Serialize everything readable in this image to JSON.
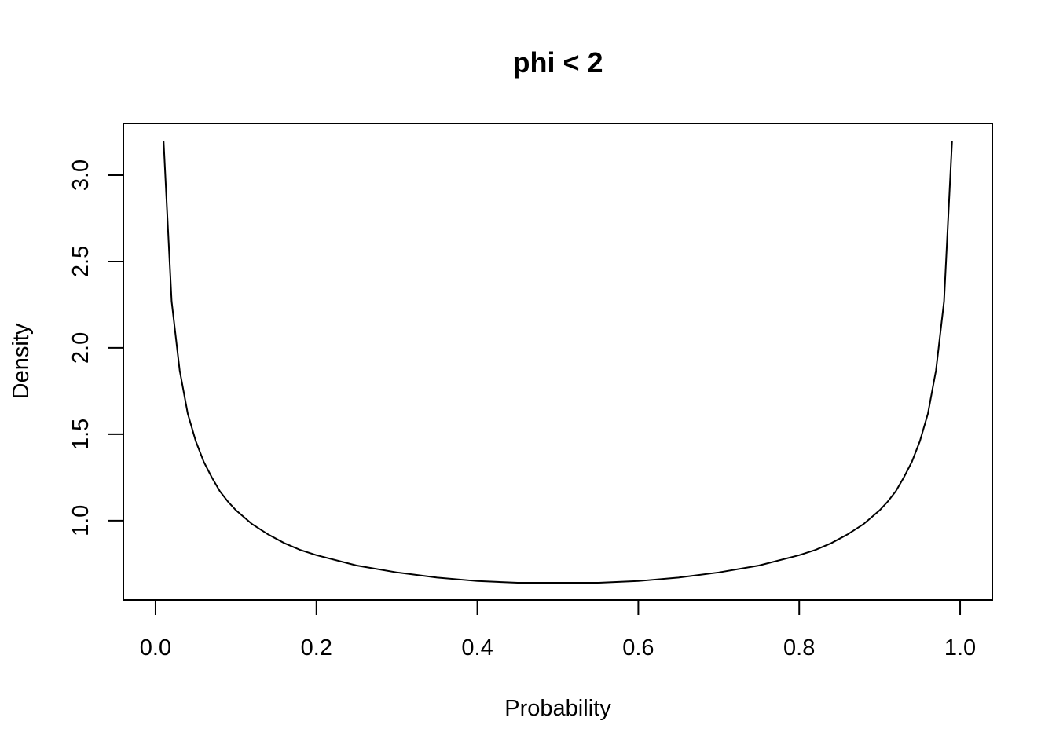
{
  "chart_data": {
    "type": "line",
    "title": "phi < 2",
    "xlabel": "Probability",
    "ylabel": "Density",
    "xlim": [
      -0.04,
      1.04
    ],
    "ylim": [
      0.54,
      3.3
    ],
    "x_ticks": [
      {
        "value": 0.0,
        "label": "0.0"
      },
      {
        "value": 0.2,
        "label": "0.2"
      },
      {
        "value": 0.4,
        "label": "0.4"
      },
      {
        "value": 0.6,
        "label": "0.6"
      },
      {
        "value": 0.8,
        "label": "0.8"
      },
      {
        "value": 1.0,
        "label": "1.0"
      }
    ],
    "y_ticks": [
      {
        "value": 1.0,
        "label": "1.0"
      },
      {
        "value": 1.5,
        "label": "1.5"
      },
      {
        "value": 2.0,
        "label": "2.0"
      },
      {
        "value": 2.5,
        "label": "2.5"
      },
      {
        "value": 3.0,
        "label": "3.0"
      }
    ],
    "grid": false,
    "series": [
      {
        "x": [
          0.01,
          0.02,
          0.03,
          0.04,
          0.05,
          0.06,
          0.07,
          0.08,
          0.09,
          0.1,
          0.12,
          0.14,
          0.16,
          0.18,
          0.2,
          0.25,
          0.3,
          0.35,
          0.4,
          0.45,
          0.5,
          0.55,
          0.6,
          0.65,
          0.7,
          0.75,
          0.8,
          0.82,
          0.84,
          0.86,
          0.88,
          0.9,
          0.91,
          0.92,
          0.93,
          0.94,
          0.95,
          0.96,
          0.97,
          0.98,
          0.99
        ],
        "y": [
          3.2,
          2.27,
          1.87,
          1.62,
          1.46,
          1.34,
          1.25,
          1.17,
          1.11,
          1.06,
          0.98,
          0.92,
          0.87,
          0.83,
          0.8,
          0.74,
          0.7,
          0.67,
          0.65,
          0.64,
          0.64,
          0.64,
          0.65,
          0.67,
          0.7,
          0.74,
          0.8,
          0.83,
          0.87,
          0.92,
          0.98,
          1.06,
          1.11,
          1.17,
          1.25,
          1.34,
          1.46,
          1.62,
          1.87,
          2.27,
          3.2
        ]
      }
    ]
  }
}
